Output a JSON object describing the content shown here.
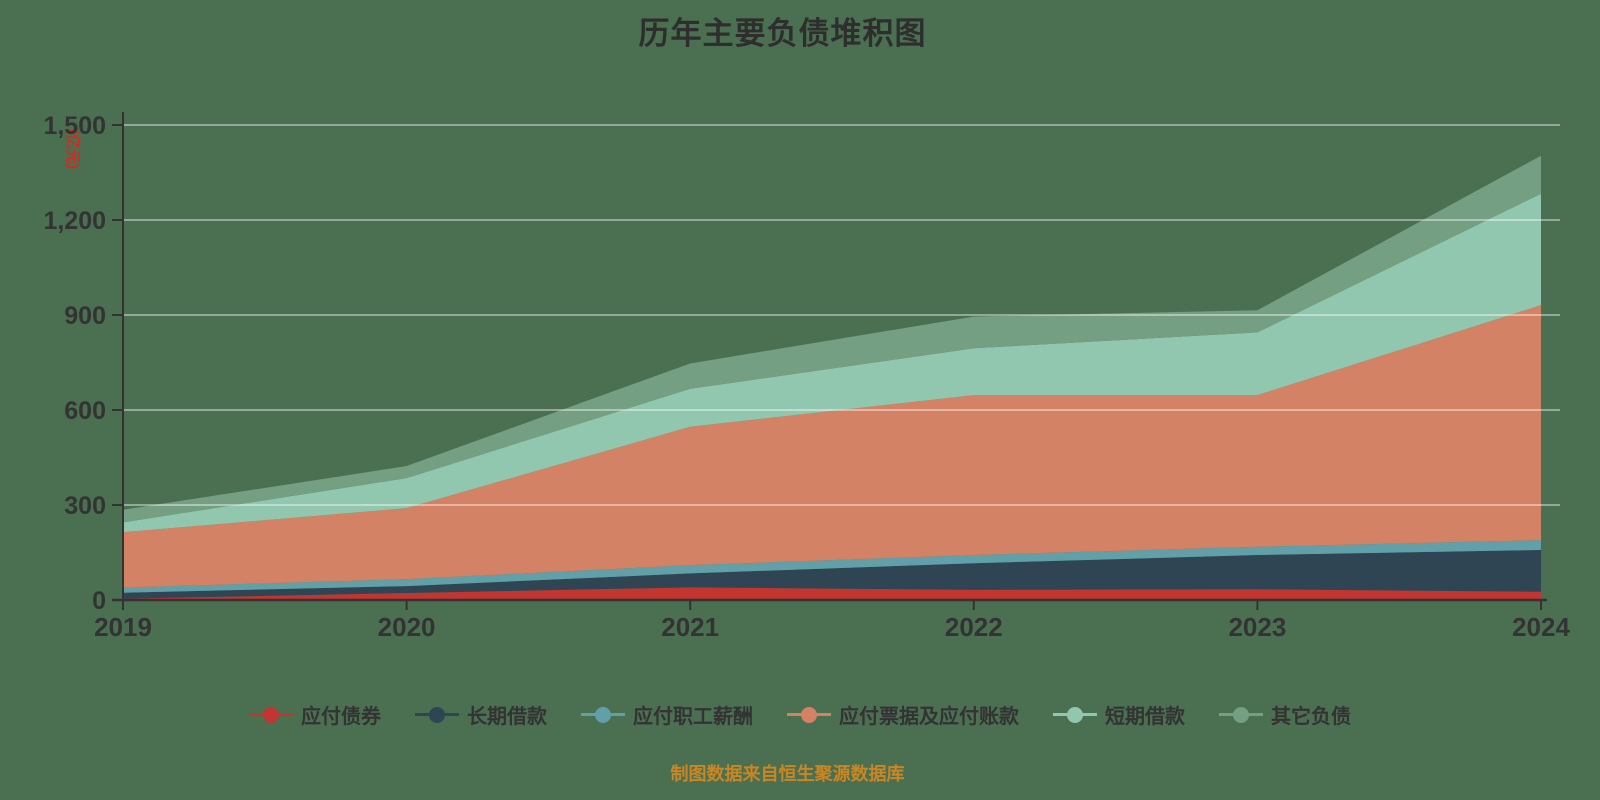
{
  "title": "历年主要负债堆积图",
  "title_color": "#2e2e2e",
  "background_color": "#4a7051",
  "axis": {
    "unit_label": "(亿元)",
    "unit_label_color": "#d42a20",
    "text_color": "#333333",
    "line_color": "#333333",
    "grid_color": "rgba(255,255,255,0.55)"
  },
  "footer": {
    "text": "制图数据来自恒生聚源数据库",
    "color": "#ca8622"
  },
  "chart_data": {
    "type": "area",
    "stacked": true,
    "title": "历年主要负债堆积图",
    "x_labels": [
      "2019",
      "2020",
      "2021",
      "2022",
      "2023",
      "2024"
    ],
    "series": [
      {
        "name": "应付债券",
        "color": "#c23531",
        "values": [
          4,
          22,
          40,
          32,
          34,
          26
        ]
      },
      {
        "name": "长期借款",
        "color": "#2f4554",
        "values": [
          19,
          22,
          44,
          84,
          108,
          132
        ]
      },
      {
        "name": "应付职工薪酬",
        "color": "#61a0a8",
        "values": [
          16,
          22,
          26,
          26,
          26,
          31
        ]
      },
      {
        "name": "应付票据及应付账款",
        "color": "#d48265",
        "values": [
          175,
          224,
          437,
          505,
          479,
          742
        ]
      },
      {
        "name": "短期借款",
        "color": "#91c7ae",
        "values": [
          31,
          95,
          120,
          148,
          198,
          352
        ]
      },
      {
        "name": "其它负债",
        "color": "#749f83",
        "values": [
          40,
          38,
          80,
          100,
          70,
          120
        ]
      }
    ],
    "stack_totals": [
      285,
      423,
      747,
      895,
      915,
      1403
    ],
    "ylabel_unit": "亿元",
    "ylim": [
      0,
      1500
    ],
    "y_ticks": [
      0,
      300,
      600,
      900,
      1200,
      1500
    ],
    "y_tick_labels": [
      "0",
      "300",
      "600",
      "900",
      "1,200",
      "1,500"
    ],
    "grid": true,
    "legend_position": "bottom"
  }
}
